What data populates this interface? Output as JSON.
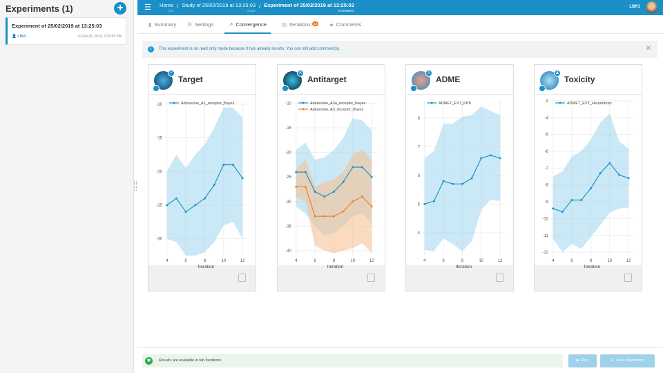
{
  "sidebar": {
    "title": "Experiments (1)",
    "add_icon": "+",
    "experiment": {
      "name": "Experiment of 25/02/2019 at 13:25:03",
      "user": "LBR1",
      "date": "Feb 26, 2019, 2:20:55 PM"
    }
  },
  "topbar": {
    "menu_icon": "☰",
    "crumbs": [
      {
        "label": "Home",
        "sub": "GTD"
      },
      {
        "label": "Study of 25/02/2019 at 13:25:03",
        "sub": "STUDY"
      },
      {
        "label": "Experiment of 25/02/2019 at 13:25:03",
        "sub": "EXPERIMENT"
      }
    ],
    "user": "LBR1"
  },
  "tabs": [
    {
      "label": "Summary",
      "icon": "bar-chart"
    },
    {
      "label": "Settings",
      "icon": "sliders"
    },
    {
      "label": "Convergence",
      "icon": "line-chart"
    },
    {
      "label": "Iterations",
      "icon": "table",
      "badge": "12"
    },
    {
      "label": "Comments",
      "icon": "comments"
    }
  ],
  "alert": {
    "message": "This experiment is on read only mode because it has already results. You can still add comment(s)."
  },
  "status": {
    "message": "Results are available in tab Iterations."
  },
  "buttons": {
    "run": "Run",
    "save": "Save experiment"
  },
  "colors": {
    "accent": "#1a8fc8",
    "series1": "#1f95c9",
    "series2": "#e8862b",
    "band1": "#c9e8f5",
    "band2": "#fbd9bd"
  },
  "chart_data": [
    {
      "type": "line",
      "title": "Target",
      "badge": "✓",
      "xlabel": "Iteration",
      "xlim": [
        3.8,
        12.5
      ],
      "ylim": [
        -32.5,
        -9.5
      ],
      "yticks": [
        -10,
        -15,
        -20,
        -25,
        -30
      ],
      "xticks": [
        4,
        6,
        8,
        10,
        12
      ],
      "series": [
        {
          "name": "Adenosine_A1_receptor_Bayes",
          "x": [
            4,
            5,
            6,
            7,
            8,
            9,
            10,
            11,
            12
          ],
          "y": [
            -25,
            -24,
            -26,
            -25,
            -24,
            -22,
            -19,
            -19,
            -21
          ],
          "upper": [
            -20,
            -17.5,
            -19.5,
            -17.5,
            -16,
            -13.5,
            -10.5,
            -10.5,
            -12
          ],
          "lower": [
            -30,
            -30.5,
            -32.5,
            -32.5,
            -32,
            -30.5,
            -28,
            -27.5,
            -30
          ]
        }
      ]
    },
    {
      "type": "line",
      "title": "Antitarget",
      "badge": "✕",
      "xlabel": "Iteration",
      "xlim": [
        3.8,
        12.5
      ],
      "ylim": [
        -41,
        -9.5
      ],
      "yticks": [
        -10,
        -15,
        -20,
        -25,
        -30,
        -35,
        -40
      ],
      "xticks": [
        4,
        6,
        8,
        10,
        12
      ],
      "series": [
        {
          "name": "Adenosine_A2a_receptor_Bayes",
          "x": [
            4,
            5,
            6,
            7,
            8,
            9,
            10,
            11,
            12
          ],
          "y": [
            -24,
            -24,
            -28,
            -29,
            -28,
            -26,
            -23,
            -23,
            -25
          ],
          "upper": [
            -19.5,
            -18,
            -21.5,
            -21,
            -19.5,
            -17,
            -13,
            -13.5,
            -15.5
          ],
          "lower": [
            -31,
            -32.5,
            -35,
            -37,
            -36.5,
            -35,
            -33,
            -32.5,
            -34.5
          ]
        },
        {
          "name": "Adenosine_A3_receptor_Bayes",
          "x": [
            4,
            5,
            6,
            7,
            8,
            9,
            10,
            11,
            12
          ],
          "y": [
            -27,
            -27,
            -33,
            -33,
            -33,
            -32,
            -30,
            -29,
            -31
          ],
          "upper": [
            -23.5,
            -21.5,
            -27,
            -26,
            -25.5,
            -24,
            -20.5,
            -19.5,
            -21.5
          ],
          "lower": [
            -29,
            -30,
            -39,
            -40,
            -40.5,
            -40,
            -39.5,
            -38.5,
            -40.5
          ]
        }
      ]
    },
    {
      "type": "line",
      "title": "ADME",
      "badge": "≡",
      "xlabel": "Iteration",
      "xlim": [
        3.8,
        12.5
      ],
      "ylim": [
        3.2,
        8.6
      ],
      "yticks": [
        4,
        5,
        6,
        7,
        8
      ],
      "xticks": [
        4,
        6,
        8,
        10,
        12
      ],
      "series": [
        {
          "name": "ADMET_EXT_PPB",
          "x": [
            4,
            5,
            6,
            7,
            8,
            9,
            10,
            11,
            12
          ],
          "y": [
            5,
            5.1,
            5.8,
            5.7,
            5.7,
            5.9,
            6.6,
            6.7,
            6.6
          ],
          "upper": [
            6.6,
            6.85,
            7.8,
            7.8,
            8.05,
            8.1,
            8.4,
            8.25,
            8.1
          ],
          "lower": [
            3.4,
            3.35,
            3.8,
            3.6,
            3.35,
            3.7,
            4.8,
            5.15,
            5.1
          ]
        }
      ]
    },
    {
      "type": "line",
      "title": "Toxicity",
      "badge": "♟",
      "xlabel": "Iteration",
      "xlim": [
        3.8,
        12.5
      ],
      "ylim": [
        -12.2,
        -3
      ],
      "yticks": [
        -3,
        -4,
        -5,
        -6,
        -7,
        -8,
        -9,
        -10,
        -11,
        -12
      ],
      "xticks": [
        4,
        6,
        8,
        10,
        12
      ],
      "series": [
        {
          "name": "ADMET_EXT_Hepatotoxic",
          "x": [
            4,
            5,
            6,
            7,
            8,
            9,
            10,
            11,
            12
          ],
          "y": [
            -9.4,
            -9.6,
            -8.9,
            -8.9,
            -8.2,
            -7.3,
            -6.7,
            -7.4,
            -7.6
          ],
          "upper": [
            -7.5,
            -7.2,
            -6.3,
            -6,
            -5.3,
            -4.3,
            -3.75,
            -5.4,
            -5.85
          ],
          "lower": [
            -11.2,
            -12,
            -11.5,
            -11.8,
            -11.1,
            -10.4,
            -9.65,
            -9.4,
            -9.35
          ]
        }
      ]
    }
  ]
}
